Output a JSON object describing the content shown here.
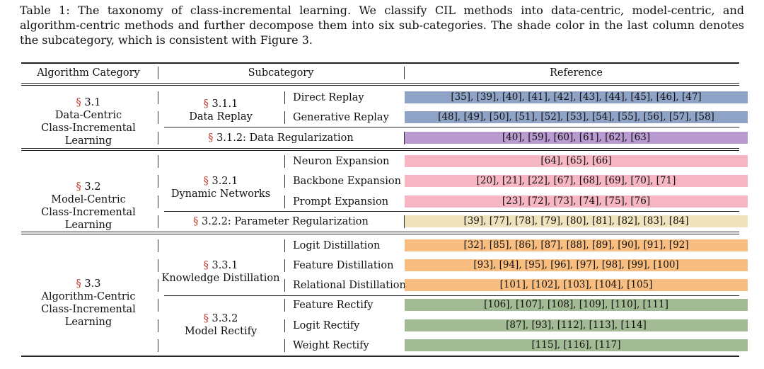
{
  "caption": "Table 1: The taxonomy of class-incremental learning. We classify CIL methods into data-centric, model-centric, and algorithm-centric methods and further decompose them into six sub-categories. The shade color in the last column denotes the subcategory, which is consistent with Figure 3.",
  "headers": {
    "category": "Algorithm Category",
    "subcategory": "Subcategory",
    "reference": "Reference"
  },
  "section_symbol": "§",
  "categories": [
    {
      "num": "3.1",
      "line1": "Data-Centric",
      "line2": "Class-Incremental Learning"
    },
    {
      "num": "3.2",
      "line1": "Model-Centric",
      "line2": "Class-Incremental Learning"
    },
    {
      "num": "3.3",
      "line1": "Algorithm-Centric",
      "line2": "Class-Incremental Learning"
    }
  ],
  "groups": [
    {
      "num": "3.1.1",
      "name": "Data Replay"
    },
    {
      "num": "3.2.1",
      "name": "Dynamic Networks"
    },
    {
      "num": "3.3.1",
      "name": "Knowledge Distillation"
    },
    {
      "num": "3.3.2",
      "name": "Model Rectify"
    }
  ],
  "spans": [
    {
      "label": "3.1.2: Data Regularization"
    },
    {
      "label": "3.2.2: Parameter Regularization"
    }
  ],
  "colors": {
    "replay": "#8fa3c6",
    "regularization": "#b99ad1",
    "expansion": "#f6b6c4",
    "param_reg": "#efe3bd",
    "distill": "#f7bd81",
    "rectify": "#a2bb94"
  },
  "rows": [
    {
      "name": "Direct Replay",
      "refs": "[35], [39], [40], [41], [42], [43], [44], [45], [46], [47]"
    },
    {
      "name": "Generative Replay",
      "refs": "[48], [49], [50], [51], [52], [53], [54], [55], [56], [57], [58]"
    },
    {
      "name": "",
      "refs": "[40], [59], [60], [61], [62], [63]"
    },
    {
      "name": "Neuron Expansion",
      "refs": "[64], [65], [66]"
    },
    {
      "name": "Backbone Expansion",
      "refs": "[20], [21], [22], [67], [68], [69], [70], [71]"
    },
    {
      "name": "Prompt Expansion",
      "refs": "[23], [72], [73], [74], [75], [76]"
    },
    {
      "name": "",
      "refs": "[39], [77], [78], [79], [80], [81], [82], [83], [84]"
    },
    {
      "name": "Logit Distillation",
      "refs": "[32], [85], [86], [87], [88], [89], [90], [91], [92]"
    },
    {
      "name": "Feature Distillation",
      "refs": "[93], [94], [95], [96], [97], [98], [99], [100]"
    },
    {
      "name": "Relational Distillation",
      "refs": "[101], [102], [103], [104], [105]"
    },
    {
      "name": "Feature Rectify",
      "refs": "[106], [107], [108], [109], [110], [111]"
    },
    {
      "name": "Logit Rectify",
      "refs": "[87], [93], [112], [113], [114]"
    },
    {
      "name": "Weight Rectify",
      "refs": "[115], [116], [117]"
    }
  ]
}
